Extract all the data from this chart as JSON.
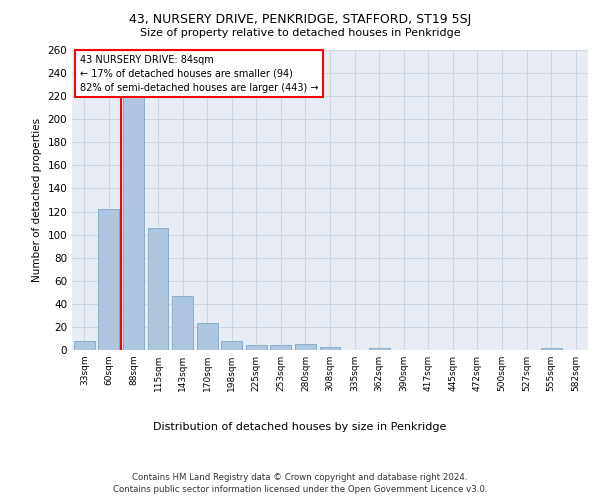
{
  "title": "43, NURSERY DRIVE, PENKRIDGE, STAFFORD, ST19 5SJ",
  "subtitle": "Size of property relative to detached houses in Penkridge",
  "xlabel": "Distribution of detached houses by size in Penkridge",
  "ylabel": "Number of detached properties",
  "bar_labels": [
    "33sqm",
    "60sqm",
    "88sqm",
    "115sqm",
    "143sqm",
    "170sqm",
    "198sqm",
    "225sqm",
    "253sqm",
    "280sqm",
    "308sqm",
    "335sqm",
    "362sqm",
    "390sqm",
    "417sqm",
    "445sqm",
    "472sqm",
    "500sqm",
    "527sqm",
    "555sqm",
    "582sqm"
  ],
  "bar_values": [
    8,
    122,
    219,
    106,
    47,
    23,
    8,
    4,
    4,
    5,
    3,
    0,
    2,
    0,
    0,
    0,
    0,
    0,
    0,
    2,
    0
  ],
  "bar_color": "#aec6df",
  "bar_edge_color": "#8aaec8",
  "grid_color": "#cdd5e3",
  "bg_color": "#e8edf5",
  "vline_x": 1.5,
  "vline_color": "red",
  "annotation_text": "43 NURSERY DRIVE: 84sqm\n← 17% of detached houses are smaller (94)\n82% of semi-detached houses are larger (443) →",
  "ylim": [
    0,
    260
  ],
  "yticks": [
    0,
    20,
    40,
    60,
    80,
    100,
    120,
    140,
    160,
    180,
    200,
    220,
    240,
    260
  ],
  "footer_line1": "Contains HM Land Registry data © Crown copyright and database right 2024.",
  "footer_line2": "Contains public sector information licensed under the Open Government Licence v3.0."
}
